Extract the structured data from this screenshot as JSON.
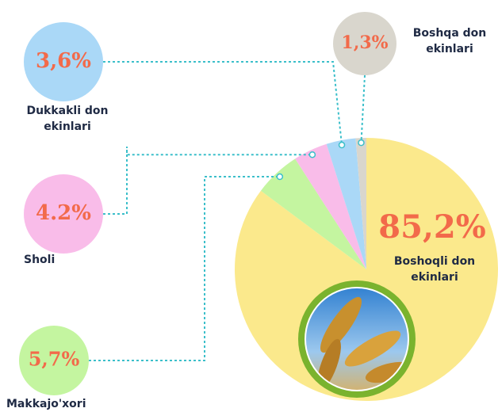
{
  "chart_data": {
    "type": "pie",
    "categories": [
      "Boshoqli don ekinlari",
      "Makkajo'xori",
      "Sholi",
      "Dukkakli don ekinlari",
      "Boshqa don ekinlari"
    ],
    "values": [
      85.2,
      5.7,
      4.2,
      3.6,
      1.3
    ],
    "value_labels": [
      "85,2%",
      "5,7%",
      "4.2%",
      "3,6%",
      "1,3%"
    ],
    "colors": [
      "#fbe98c",
      "#c4f5a0",
      "#f9bce9",
      "#aad8f7",
      "#d9d6cd"
    ]
  }
}
